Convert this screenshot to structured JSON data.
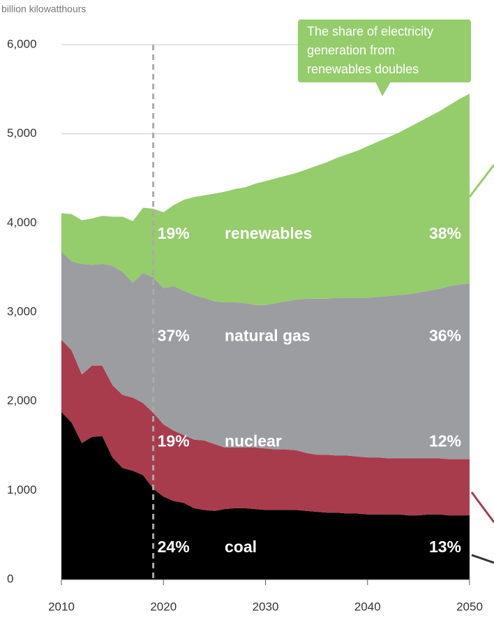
{
  "chart_data": {
    "type": "stacked-area",
    "y_axis_label": "billion kilowatthours",
    "x": [
      2010,
      2011,
      2012,
      2013,
      2014,
      2015,
      2016,
      2017,
      2018,
      2019,
      2020,
      2021,
      2022,
      2023,
      2024,
      2025,
      2026,
      2027,
      2028,
      2029,
      2030,
      2031,
      2032,
      2033,
      2034,
      2035,
      2036,
      2037,
      2038,
      2039,
      2040,
      2041,
      2042,
      2043,
      2044,
      2045,
      2046,
      2047,
      2048,
      2049,
      2050
    ],
    "xlim": [
      2010,
      2050
    ],
    "xticks": [
      2010,
      2020,
      2030,
      2040,
      2050
    ],
    "ylim": [
      0,
      6000
    ],
    "yticks": [
      0,
      {
        "value": 1000,
        "label": "1,000"
      },
      {
        "value": 2000,
        "label": "2,000"
      },
      {
        "value": 3000,
        "label": "3,000"
      },
      {
        "value": 4000,
        "label": "4,000"
      },
      {
        "value": 5000,
        "label": "5,000"
      },
      {
        "value": 6000,
        "label": "6,000"
      }
    ],
    "grid": true,
    "projection_start": 2019,
    "series": [
      {
        "name": "coal",
        "color": "#000000",
        "start_share": "24%",
        "end_share": "13%",
        "values": [
          1880,
          1760,
          1530,
          1600,
          1610,
          1370,
          1250,
          1220,
          1170,
          1020,
          930,
          880,
          860,
          800,
          780,
          770,
          790,
          800,
          800,
          790,
          780,
          780,
          780,
          780,
          770,
          760,
          750,
          750,
          740,
          740,
          730,
          730,
          730,
          730,
          720,
          720,
          730,
          730,
          720,
          720,
          720
        ]
      },
      {
        "name": "nuclear",
        "color": "#a83c4c",
        "start_share": "19%",
        "end_share": "12%",
        "values": [
          810,
          810,
          770,
          800,
          790,
          810,
          820,
          820,
          810,
          850,
          810,
          790,
          760,
          770,
          780,
          750,
          690,
          680,
          680,
          690,
          690,
          680,
          680,
          670,
          650,
          640,
          650,
          640,
          650,
          640,
          640,
          640,
          630,
          630,
          640,
          640,
          630,
          630,
          630,
          630,
          630
        ]
      },
      {
        "name": "natural gas",
        "color": "#9c9da1",
        "start_share": "37%",
        "end_share": "36%",
        "values": [
          990,
          1000,
          1240,
          1130,
          1140,
          1340,
          1380,
          1290,
          1460,
          1520,
          1530,
          1620,
          1620,
          1620,
          1600,
          1600,
          1630,
          1630,
          1620,
          1600,
          1610,
          1640,
          1660,
          1690,
          1730,
          1750,
          1750,
          1770,
          1770,
          1780,
          1790,
          1800,
          1820,
          1830,
          1840,
          1860,
          1880,
          1900,
          1940,
          1960,
          1970
        ]
      },
      {
        "name": "renewables",
        "color": "#95cc6c",
        "start_share": "19%",
        "end_share": "38%",
        "values": [
          430,
          530,
          490,
          520,
          540,
          550,
          620,
          690,
          730,
          770,
          850,
          910,
          1020,
          1100,
          1150,
          1210,
          1240,
          1270,
          1300,
          1360,
          1390,
          1400,
          1410,
          1420,
          1450,
          1490,
          1530,
          1570,
          1610,
          1650,
          1700,
          1740,
          1780,
          1820,
          1870,
          1910,
          1950,
          1990,
          2030,
          2080,
          2130
        ]
      }
    ],
    "annotation": [
      "The share of electricity",
      "generation from",
      "renewables doubles"
    ]
  }
}
